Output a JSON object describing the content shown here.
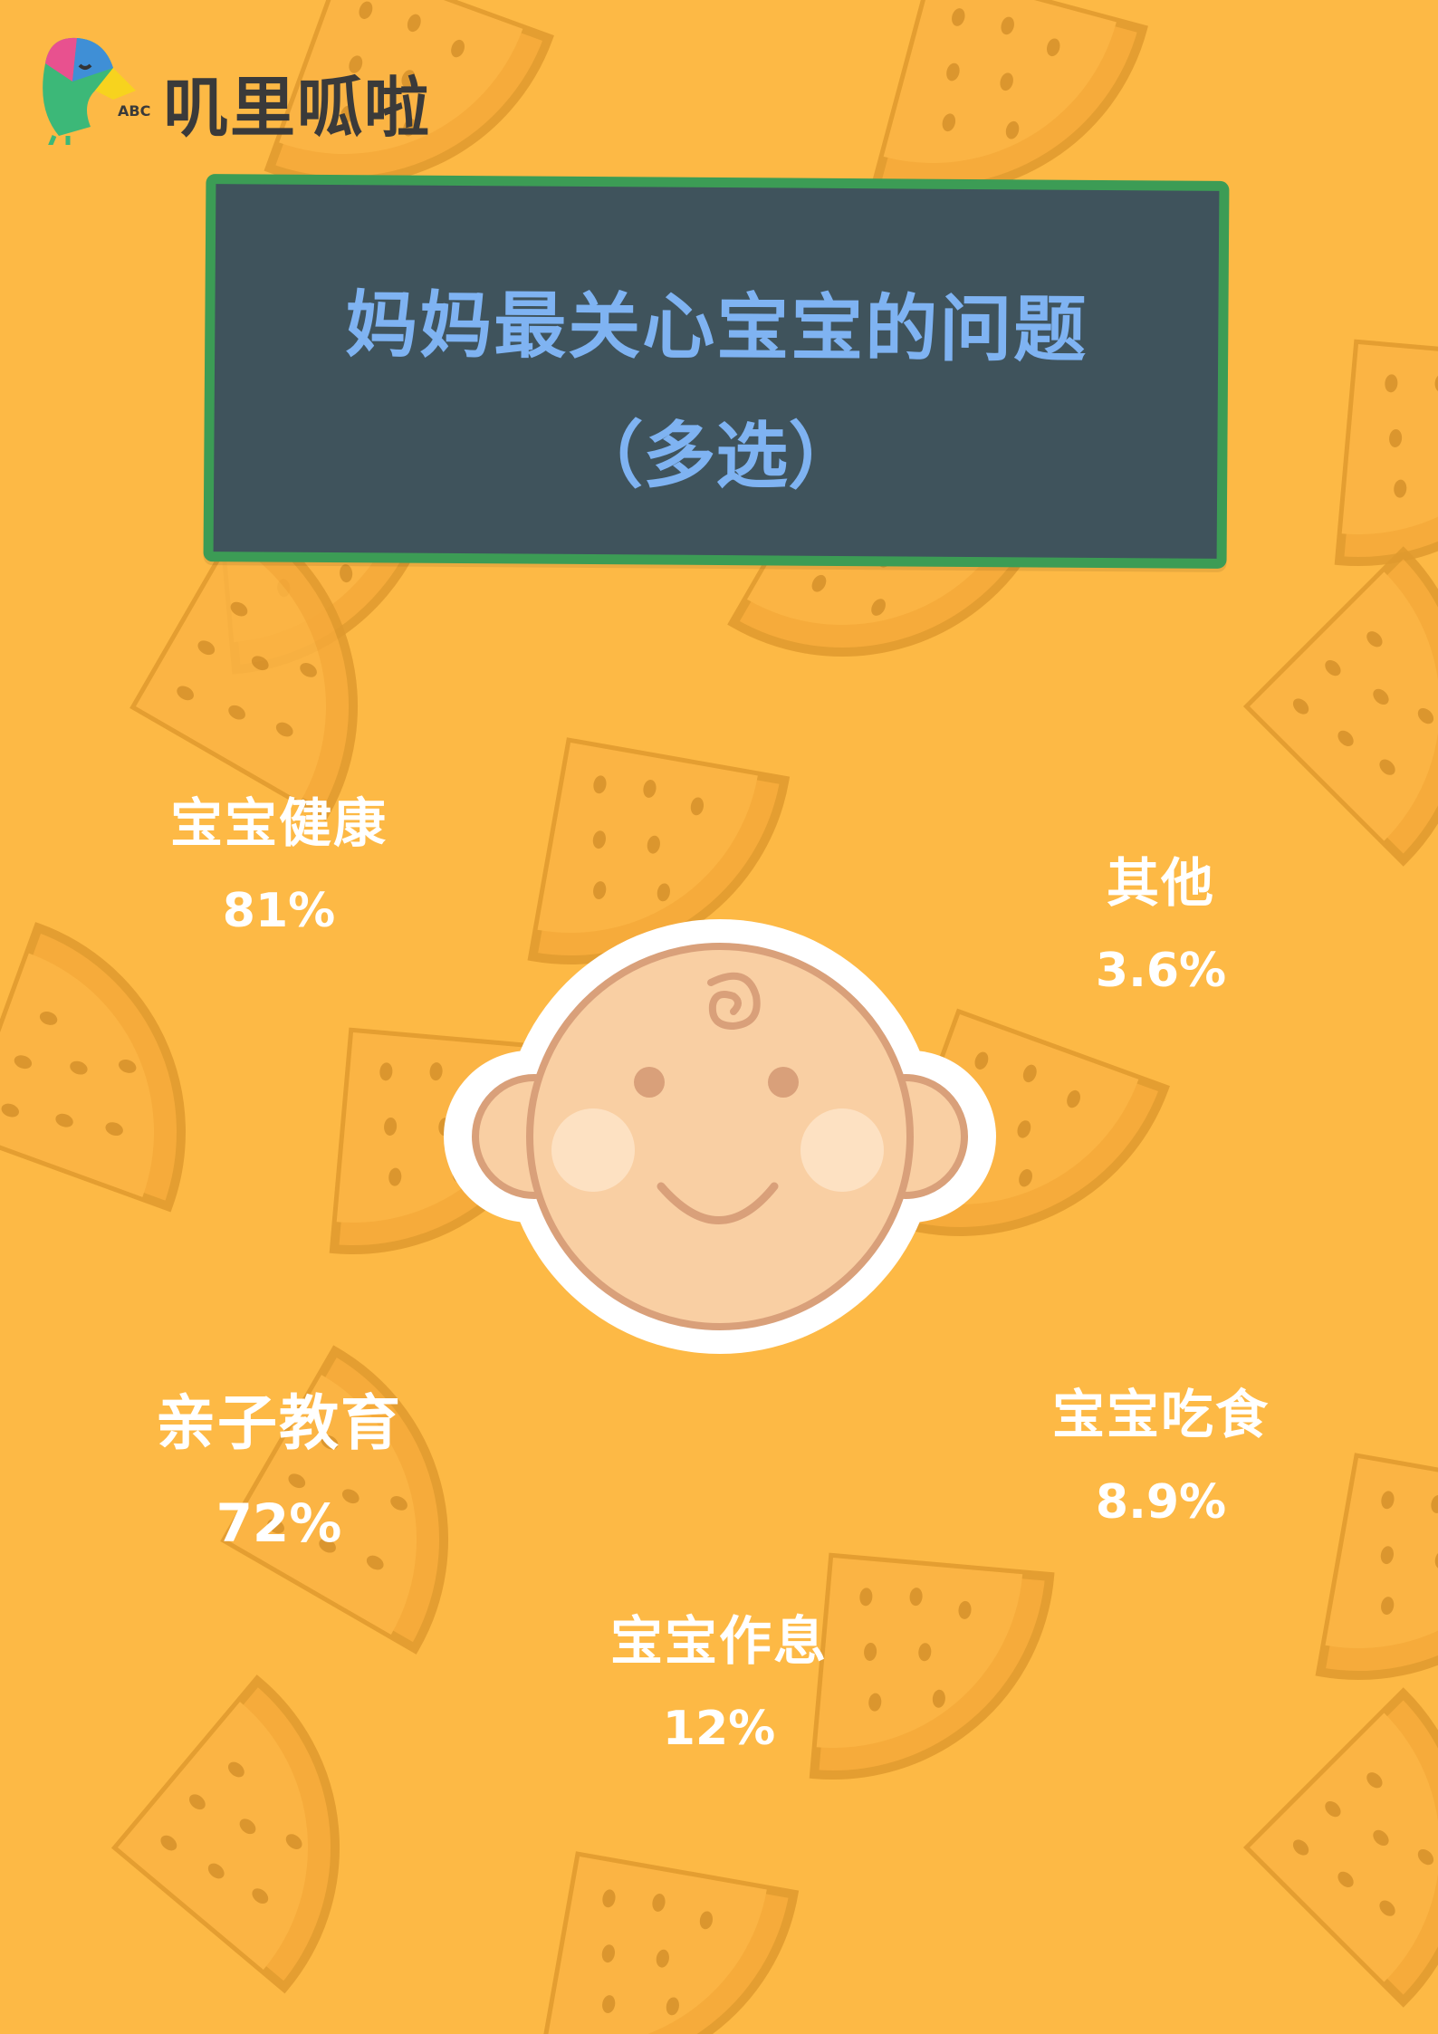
{
  "brand": {
    "name": "叽里呱啦",
    "logo_letters": "ABC",
    "colors": {
      "parrot_green": "#3CB878",
      "parrot_pink": "#E8518F",
      "parrot_blue": "#3F8FD6",
      "parrot_yellow": "#F7D31E"
    }
  },
  "title": {
    "line1": "妈妈最关心宝宝的问题",
    "line2": "（多选）"
  },
  "colors": {
    "background": "#FDB945",
    "watermelon": "#F5A93A",
    "board": "#3F535C",
    "board_border": "#3C9C55",
    "title_text": "#7FB3F2",
    "label_text": "#FFFFFF",
    "baby_skin": "#F9CFA3",
    "baby_outline": "#D9A07A"
  },
  "items": [
    {
      "name": "宝宝健康",
      "value": "81%"
    },
    {
      "name": "其他",
      "value": "3.6%"
    },
    {
      "name": "亲子教育",
      "value": "72%"
    },
    {
      "name": "宝宝吃食",
      "value": "8.9%"
    },
    {
      "name": "宝宝作息",
      "value": "12%"
    }
  ],
  "icons": {
    "center": "baby-face-icon",
    "background": "watermelon-slice-icon"
  }
}
